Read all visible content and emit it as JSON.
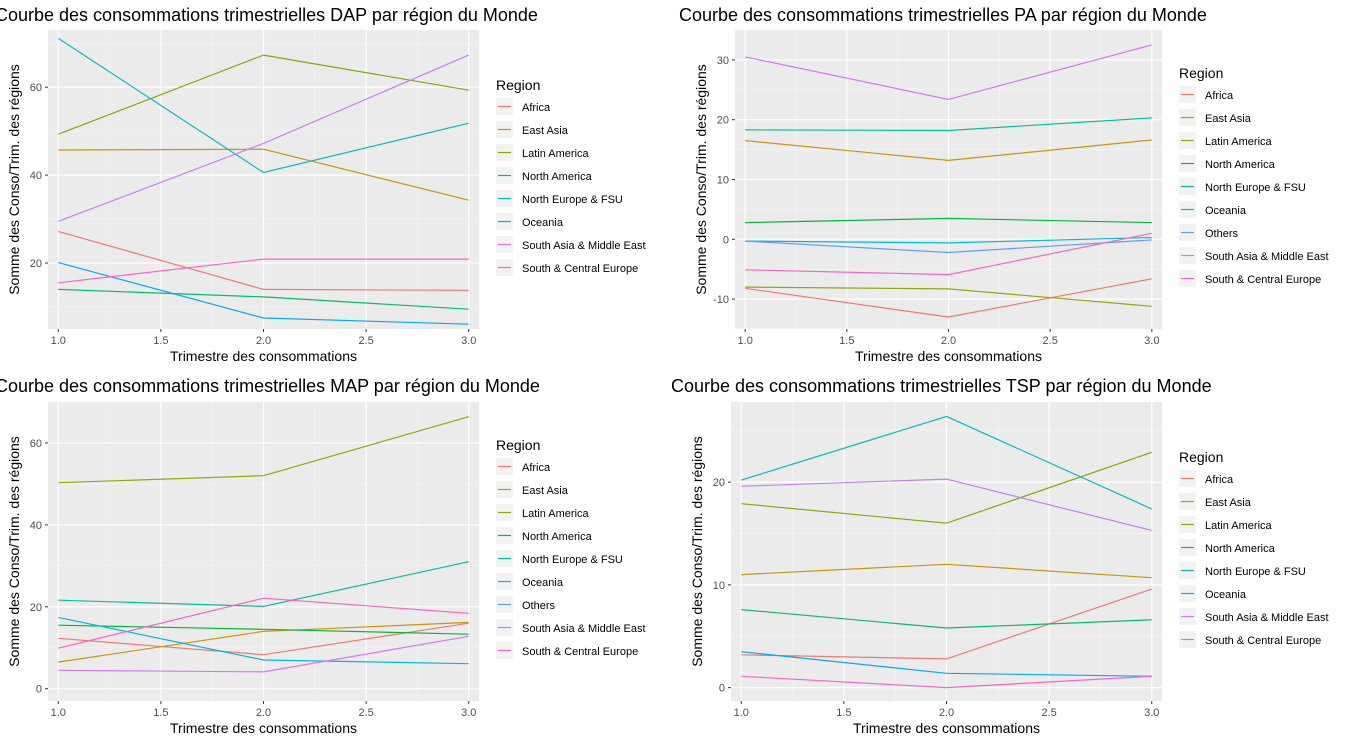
{
  "chart_data": [
    {
      "type": "line",
      "title": "Courbe des consommations trimestrielles  DAP  par région du Monde",
      "xlabel": "Trimestre des consommations",
      "ylabel": "Somme des Conso/Trim. des régions",
      "xlim": [
        0.95,
        3.05
      ],
      "ylim": [
        5,
        73
      ],
      "xticks": [
        "1.0",
        "1.5",
        "2.0",
        "2.5",
        "3.0"
      ],
      "yticks": [
        "20",
        "40",
        "60"
      ],
      "legend_title": "Region",
      "legend_position": "right",
      "grid": true,
      "x": [
        1,
        2,
        3
      ],
      "series": [
        {
          "name": "Africa",
          "color": "#F8766D",
          "values": [
            27.2,
            14.0,
            13.8
          ]
        },
        {
          "name": "East Asia",
          "color": "#CD9600",
          "values": [
            45.7,
            45.9,
            34.3
          ]
        },
        {
          "name": "Latin America",
          "color": "#7CAE00",
          "values": [
            49.3,
            67.3,
            59.3
          ]
        },
        {
          "name": "North America",
          "color": "#00BE67",
          "values": [
            14.0,
            12.3,
            9.5
          ]
        },
        {
          "name": "North Europe & FSU",
          "color": "#00BFC4",
          "values": [
            71.1,
            40.6,
            51.8
          ]
        },
        {
          "name": "Oceania",
          "color": "#00A9FF",
          "values": [
            20.1,
            7.5,
            6.1
          ]
        },
        {
          "name": "South Asia & Middle East",
          "color": "#C77CFF",
          "values": [
            29.5,
            47.2,
            67.3
          ]
        },
        {
          "name": "South & Central Europe",
          "color": "#FF61CC",
          "values": [
            15.5,
            20.9,
            20.9
          ]
        }
      ]
    },
    {
      "type": "line",
      "title": "Courbe des consommations trimestrielles  PA  par région du Monde",
      "xlabel": "Trimestre des consommations",
      "ylabel": "Somme des Conso/Trim. des régions",
      "xlim": [
        0.95,
        3.05
      ],
      "ylim": [
        -15,
        35
      ],
      "xticks": [
        "1.0",
        "1.5",
        "2.0",
        "2.5",
        "3.0"
      ],
      "yticks": [
        "-10",
        "0",
        "10",
        "20",
        "30"
      ],
      "legend_title": "Region",
      "legend_position": "right",
      "grid": true,
      "x": [
        1,
        2,
        3
      ],
      "series": [
        {
          "name": "Africa",
          "color": "#F8766D",
          "values": [
            -8.2,
            -13.0,
            -6.6
          ]
        },
        {
          "name": "East Asia",
          "color": "#D39200",
          "values": [
            16.5,
            13.2,
            16.6
          ]
        },
        {
          "name": "Latin America",
          "color": "#93AA00",
          "values": [
            -8.0,
            -8.3,
            -11.2
          ]
        },
        {
          "name": "North America",
          "color": "#00BA38",
          "values": [
            2.8,
            3.5,
            2.8
          ]
        },
        {
          "name": "North Europe & FSU",
          "color": "#00C19F",
          "values": [
            18.3,
            18.2,
            20.3
          ]
        },
        {
          "name": "Oceania",
          "color": "#00B9E3",
          "values": [
            -0.3,
            -0.6,
            0.3
          ]
        },
        {
          "name": "Others",
          "color": "#619CFF",
          "values": [
            -0.3,
            -2.2,
            -0.1
          ]
        },
        {
          "name": "South Asia & Middle East",
          "color": "#DB72FB",
          "values": [
            30.5,
            23.4,
            32.5
          ]
        },
        {
          "name": "South & Central Europe",
          "color": "#FF61C3",
          "values": [
            -5.1,
            -5.9,
            1.0
          ]
        }
      ]
    },
    {
      "type": "line",
      "title": "Courbe des consommations trimestrielles  MAP  par région du Monde",
      "xlabel": "Trimestre des consommations",
      "ylabel": "Somme des Conso/Trim. des régions",
      "xlim": [
        0.95,
        3.05
      ],
      "ylim": [
        -3,
        70
      ],
      "xticks": [
        "1.0",
        "1.5",
        "2.0",
        "2.5",
        "3.0"
      ],
      "yticks": [
        "0",
        "20",
        "40",
        "60"
      ],
      "legend_title": "Region",
      "legend_position": "right",
      "grid": true,
      "x": [
        1,
        2,
        3
      ],
      "series": [
        {
          "name": "Africa",
          "color": "#F8766D",
          "values": [
            12.3,
            8.3,
            16.0
          ]
        },
        {
          "name": "East Asia",
          "color": "#D39200",
          "values": [
            6.5,
            14.0,
            16.2
          ]
        },
        {
          "name": "Latin America",
          "color": "#93AA00",
          "values": [
            50.3,
            52.0,
            66.4
          ]
        },
        {
          "name": "North America",
          "color": "#00BA38",
          "values": [
            15.5,
            14.5,
            13.3
          ]
        },
        {
          "name": "North Europe & FSU",
          "color": "#00C19F",
          "values": [
            21.6,
            20.1,
            31.0
          ]
        },
        {
          "name": "Oceania",
          "color": "#00B9E3",
          "values": [
            17.4,
            7.0,
            6.1
          ]
        },
        {
          "name": "Others",
          "color": "#619CFF",
          "values": [
            null,
            null,
            null
          ]
        },
        {
          "name": "South Asia & Middle East",
          "color": "#DB72FB",
          "values": [
            4.5,
            4.1,
            12.8
          ]
        },
        {
          "name": "South & Central Europe",
          "color": "#FF61C3",
          "values": [
            9.9,
            22.1,
            18.4
          ]
        }
      ]
    },
    {
      "type": "line",
      "title": "Courbe des consommations trimestrielles  TSP  par région du Monde",
      "xlabel": "Trimestre des consommations",
      "ylabel": "Somme des Conso/Trim. des régions",
      "xlim": [
        0.95,
        3.05
      ],
      "ylim": [
        -1.3,
        27.8
      ],
      "xticks": [
        "1.0",
        "1.5",
        "2.0",
        "2.5",
        "3.0"
      ],
      "yticks": [
        "0",
        "10",
        "20"
      ],
      "legend_title": "Region",
      "legend_position": "right",
      "grid": true,
      "x": [
        1,
        2,
        3
      ],
      "series": [
        {
          "name": "Africa",
          "color": "#F8766D",
          "values": [
            3.2,
            2.8,
            9.6
          ]
        },
        {
          "name": "East Asia",
          "color": "#CD9600",
          "values": [
            11.0,
            12.0,
            10.7
          ]
        },
        {
          "name": "Latin America",
          "color": "#7CAE00",
          "values": [
            17.9,
            16.0,
            22.9
          ]
        },
        {
          "name": "North America",
          "color": "#00BE67",
          "values": [
            7.6,
            5.8,
            6.6
          ]
        },
        {
          "name": "North Europe & FSU",
          "color": "#00BFC4",
          "values": [
            20.2,
            26.4,
            17.4
          ]
        },
        {
          "name": "Oceania",
          "color": "#00A9FF",
          "values": [
            3.5,
            1.4,
            1.1
          ]
        },
        {
          "name": "South Asia & Middle East",
          "color": "#C77CFF",
          "values": [
            19.6,
            20.3,
            15.3
          ]
        },
        {
          "name": "South & Central Europe",
          "color": "#FF61CC",
          "values": [
            1.1,
            0.0,
            1.1
          ]
        }
      ]
    }
  ]
}
